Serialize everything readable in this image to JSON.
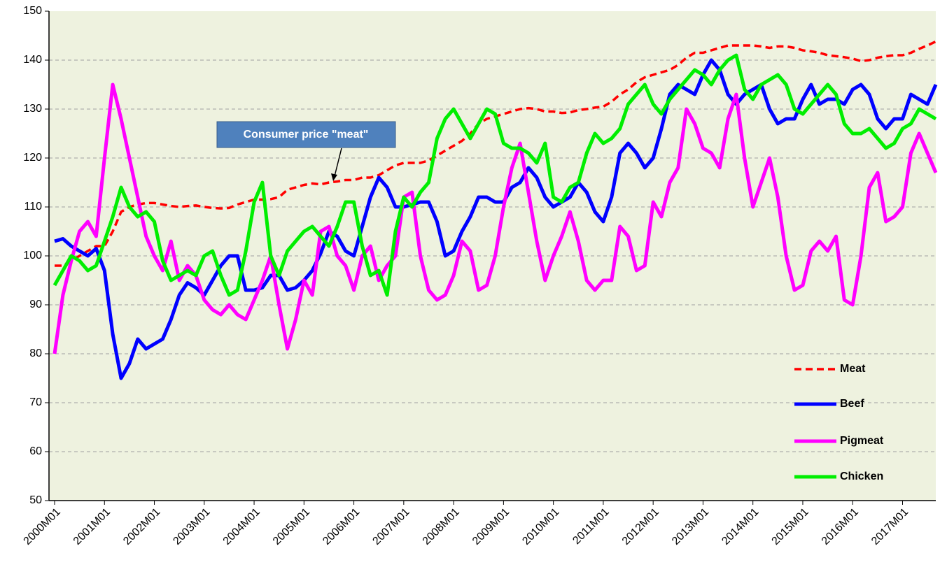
{
  "chart_data": {
    "type": "line",
    "annotation": "Consumer price \"meat\"",
    "categories": [
      "2000M01",
      null,
      null,
      null,
      null,
      null,
      "2001M01",
      null,
      null,
      null,
      null,
      null,
      "2002M01",
      null,
      null,
      null,
      null,
      null,
      "2003M01",
      null,
      null,
      null,
      null,
      null,
      "2004M01",
      null,
      null,
      null,
      null,
      null,
      "2005M01",
      null,
      null,
      null,
      null,
      null,
      "2006M01",
      null,
      null,
      null,
      null,
      null,
      "2007M01",
      null,
      null,
      null,
      null,
      null,
      "2008M01",
      null,
      null,
      null,
      null,
      null,
      "2009M01",
      null,
      null,
      null,
      null,
      null,
      "2010M01",
      null,
      null,
      null,
      null,
      null,
      "2011M01",
      null,
      null,
      null,
      null,
      null,
      "2012M01",
      null,
      null,
      null,
      null,
      null,
      "2013M01",
      null,
      null,
      null,
      null,
      null,
      "2014M01",
      null,
      null,
      null,
      null,
      null,
      "2015M01",
      null,
      null,
      null,
      null,
      null,
      "2016M01",
      null,
      null,
      null,
      null,
      null,
      "2017M01",
      null,
      null,
      null,
      null
    ],
    "series": [
      {
        "name": "Meat",
        "color": "#ff0000",
        "dashed": true,
        "values": [
          98,
          98,
          99,
          100,
          101,
          102,
          102,
          105,
          109,
          110,
          110.5,
          110.8,
          110.8,
          110.5,
          110.2,
          110,
          110.2,
          110.3,
          110,
          109.8,
          109.7,
          109.8,
          110.5,
          111,
          111.5,
          111.5,
          111.6,
          112,
          113.5,
          114,
          114.5,
          114.8,
          114.6,
          115,
          115.2,
          115.5,
          115.5,
          116,
          116,
          116.5,
          117.5,
          118.5,
          119,
          119,
          119,
          119.5,
          120.5,
          121.5,
          122.5,
          123.5,
          125,
          127,
          128,
          128.5,
          129,
          129.5,
          130,
          130.2,
          130,
          129.5,
          129.5,
          129.2,
          129.3,
          129.8,
          130,
          130.3,
          130.5,
          131.5,
          133,
          134,
          135.5,
          136.5,
          137,
          137.5,
          138,
          139,
          140.5,
          141.5,
          141.5,
          142,
          142.5,
          143,
          143,
          143,
          143,
          142.8,
          142.5,
          142.8,
          142.8,
          142.5,
          142,
          141.8,
          141.5,
          141,
          140.8,
          140.6,
          140.3,
          139.8,
          140,
          140.5,
          140.8,
          141,
          141,
          141.5,
          142.3,
          143,
          143.8
        ]
      },
      {
        "name": "Beef",
        "color": "#0000ff",
        "dashed": false,
        "values": [
          103,
          103.5,
          102,
          101,
          100,
          101.5,
          97,
          84,
          75,
          78,
          83,
          81,
          82,
          83,
          87,
          92,
          94.5,
          93.5,
          92,
          95,
          98,
          100,
          100,
          93,
          93,
          93.5,
          96,
          96,
          93,
          93.5,
          95,
          97,
          100.5,
          105,
          104,
          101,
          100,
          106,
          112,
          116,
          114,
          110,
          110,
          110.5,
          111,
          111,
          107,
          100,
          101,
          105,
          108,
          112,
          112,
          111,
          111,
          114,
          115,
          118,
          116,
          112,
          110,
          111,
          112,
          115,
          113,
          109,
          107,
          112,
          121,
          123,
          121,
          118,
          120,
          126,
          133,
          135,
          134,
          133,
          137,
          140,
          138,
          133,
          131,
          133,
          134,
          135,
          130,
          127,
          128,
          128,
          132,
          135,
          131,
          132,
          132,
          131,
          134,
          135,
          133,
          128,
          126,
          128,
          128,
          133,
          132,
          131,
          135
        ]
      },
      {
        "name": "Pigmeat",
        "color": "#ff00ff",
        "dashed": false,
        "values": [
          80,
          92,
          99,
          105,
          107,
          104,
          120,
          135,
          128,
          120,
          112,
          104,
          100,
          97,
          103,
          95,
          98,
          96,
          91,
          89,
          88,
          90,
          88,
          87,
          91,
          95,
          100,
          90,
          81,
          87,
          95,
          92,
          105,
          106,
          100,
          98,
          93,
          100,
          102,
          95,
          98,
          100,
          112,
          113,
          100,
          93,
          91,
          92,
          96,
          103,
          101,
          93,
          94,
          100,
          110,
          118,
          123,
          113,
          103,
          95,
          100,
          104,
          109,
          103,
          95,
          93,
          95,
          95,
          106,
          104,
          97,
          98,
          111,
          108,
          115,
          118,
          130,
          127,
          122,
          121,
          118,
          128,
          133,
          120,
          110,
          115,
          120,
          112,
          100,
          93,
          94,
          101,
          103,
          101,
          104,
          91,
          90,
          100,
          114,
          117,
          107,
          108,
          110,
          121,
          125,
          121,
          117
        ]
      },
      {
        "name": "Chicken",
        "color": "#00ee00",
        "dashed": false,
        "values": [
          94,
          97,
          100,
          99,
          97,
          98,
          103,
          108,
          114,
          110,
          108,
          109,
          107,
          99,
          95,
          96,
          97,
          96,
          100,
          101,
          96,
          92,
          93,
          101,
          111,
          115,
          100,
          96,
          101,
          103,
          105,
          106,
          104,
          102,
          106,
          111,
          111,
          102,
          96,
          97,
          92,
          105,
          112,
          110,
          113,
          115,
          124,
          128,
          130,
          127,
          124,
          127,
          130,
          129,
          123,
          122,
          122,
          121,
          119,
          123,
          112,
          111,
          114,
          115,
          121,
          125,
          123,
          124,
          126,
          131,
          133,
          135,
          131,
          129,
          132,
          134,
          136,
          138,
          137,
          135,
          138,
          140,
          141,
          134,
          132,
          135,
          136,
          137,
          135,
          130,
          129,
          131,
          133,
          135,
          133,
          127,
          125,
          125,
          126,
          124,
          122,
          123,
          126,
          127,
          130,
          129,
          128
        ]
      }
    ],
    "ylim": [
      50,
      150
    ],
    "yticks": [
      50,
      60,
      70,
      80,
      90,
      100,
      110,
      120,
      130,
      140,
      150
    ],
    "grid": true,
    "legend": "right"
  }
}
